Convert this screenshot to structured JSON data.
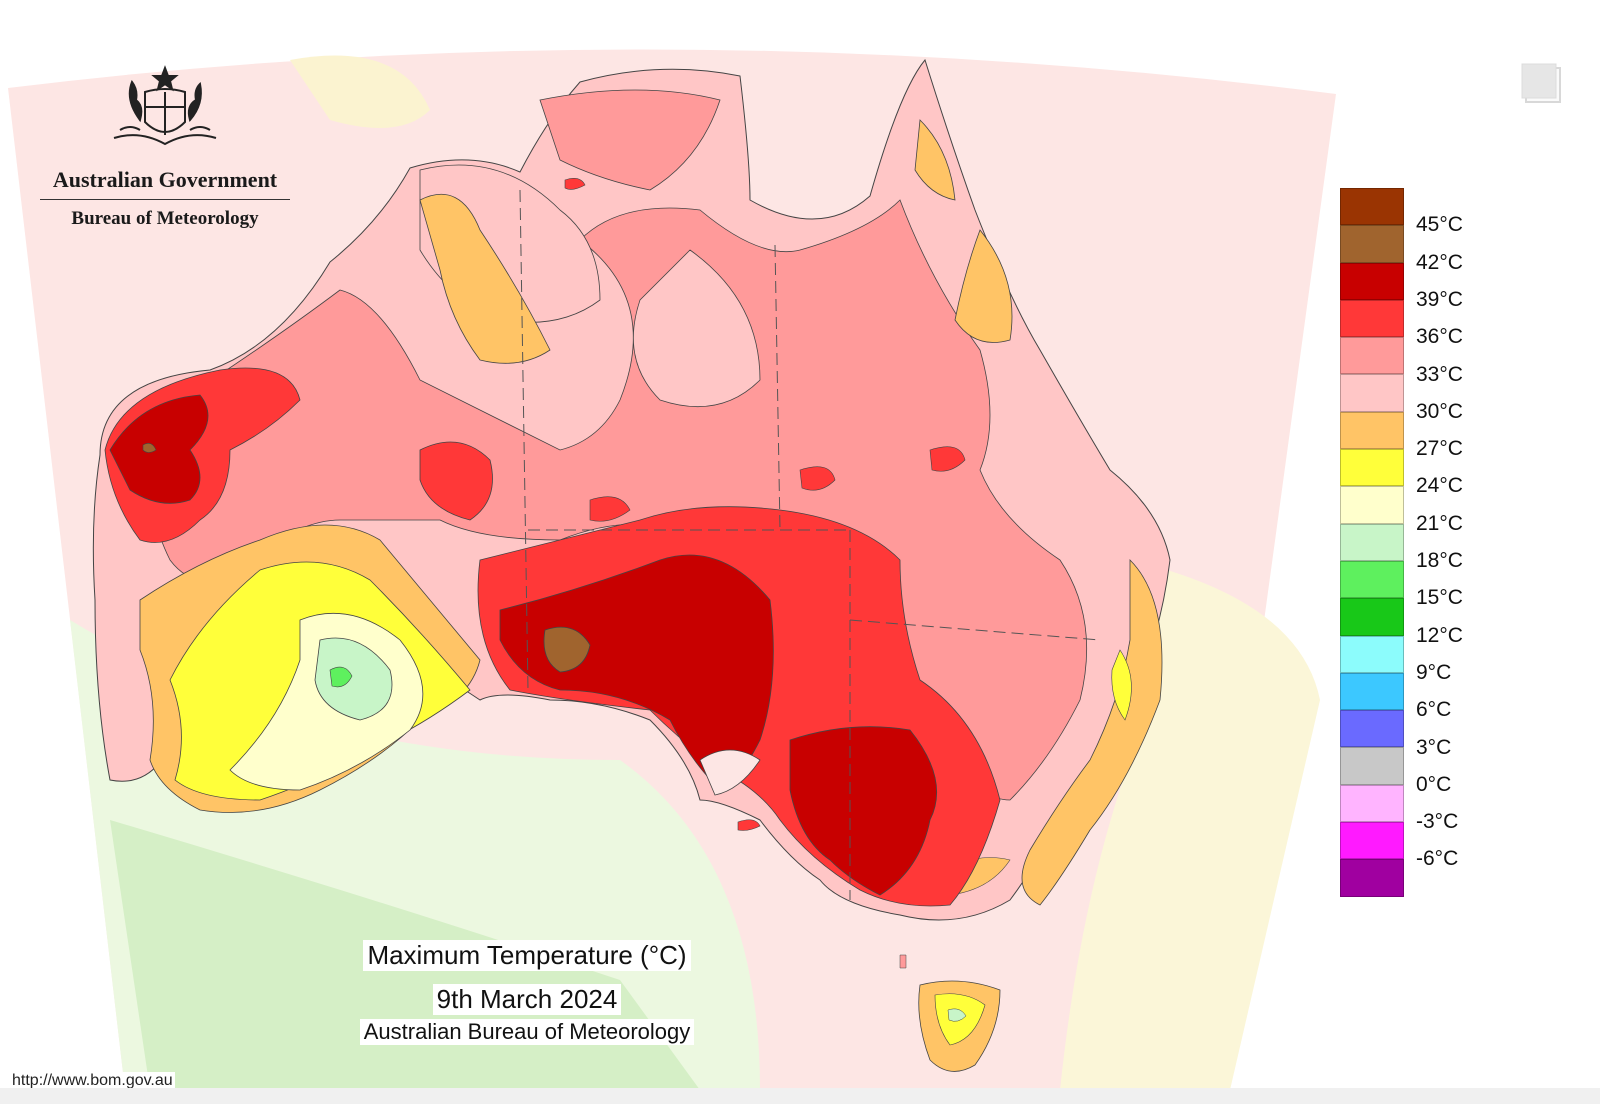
{
  "logo": {
    "line1": "Australian Government",
    "line2": "Bureau of Meteorology",
    "icon": "coat-of-arms-icon"
  },
  "caption": {
    "title": "Maximum Temperature (°C)",
    "date": "9th March 2024",
    "org": "Australian Bureau of Meteorology"
  },
  "url": "http://www.bom.gov.au",
  "legend": [
    {
      "color": "#9a3402",
      "label": "45°C"
    },
    {
      "color": "#a0642e",
      "label": "42°C"
    },
    {
      "color": "#c80000",
      "label": "39°C"
    },
    {
      "color": "#ff3838",
      "label": "36°C"
    },
    {
      "color": "#ff9a9a",
      "label": "33°C"
    },
    {
      "color": "#ffc6c6",
      "label": "30°C"
    },
    {
      "color": "#ffc466",
      "label": "27°C"
    },
    {
      "color": "#ffff3a",
      "label": "24°C"
    },
    {
      "color": "#ffffcc",
      "label": "21°C"
    },
    {
      "color": "#c8f5c8",
      "label": "18°C"
    },
    {
      "color": "#5ef05e",
      "label": "15°C"
    },
    {
      "color": "#18c818",
      "label": "12°C"
    },
    {
      "color": "#8cfcfc",
      "label": "9°C"
    },
    {
      "color": "#3cc8ff",
      "label": "6°C"
    },
    {
      "color": "#6a6aff",
      "label": "3°C"
    },
    {
      "color": "#c8c8c8",
      "label": "0°C"
    },
    {
      "color": "#ffb4ff",
      "label": "-3°C"
    },
    {
      "color": "#ff1aff",
      "label": "-6°C"
    },
    {
      "color": "#a000a0",
      "label": ""
    }
  ],
  "expand_icon": "expand-icon"
}
